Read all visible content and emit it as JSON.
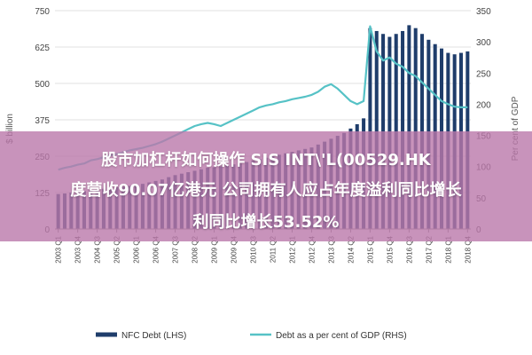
{
  "chart_data": {
    "type": "bar",
    "title": "",
    "xlabel": "",
    "ylabel_left": "$ billion",
    "ylabel_right": "Per cent of GDP",
    "ylim_left": [
      0,
      750
    ],
    "ylim_right": [
      0,
      350
    ],
    "yticks_left": [
      "0",
      "125",
      "250",
      "375",
      "500",
      "625",
      "750"
    ],
    "yticks_right": [
      "0",
      "50",
      "100",
      "150",
      "200",
      "250",
      "300",
      "350"
    ],
    "xtick_labels": [
      "2003 Q1",
      "2003 Q4",
      "2004 Q3",
      "2005 Q2",
      "2006 Q1",
      "2006 Q4",
      "2007 Q3",
      "2008 Q2",
      "2009 Q1",
      "2009 Q4",
      "2010 Q3",
      "2011 Q2",
      "2012 Q1",
      "2012 Q4",
      "2013 Q3",
      "2014 Q2",
      "2015 Q1",
      "2015 Q4",
      "2016 Q3",
      "2017 Q2",
      "2018 Q1",
      "2018 Q4"
    ],
    "quarters": [
      "2003 Q1",
      "2003 Q2",
      "2003 Q3",
      "2003 Q4",
      "2004 Q1",
      "2004 Q2",
      "2004 Q3",
      "2004 Q4",
      "2005 Q1",
      "2005 Q2",
      "2005 Q3",
      "2005 Q4",
      "2006 Q1",
      "2006 Q2",
      "2006 Q3",
      "2006 Q4",
      "2007 Q1",
      "2007 Q2",
      "2007 Q3",
      "2007 Q4",
      "2008 Q1",
      "2008 Q2",
      "2008 Q3",
      "2008 Q4",
      "2009 Q1",
      "2009 Q2",
      "2009 Q3",
      "2009 Q4",
      "2010 Q1",
      "2010 Q2",
      "2010 Q3",
      "2010 Q4",
      "2011 Q1",
      "2011 Q2",
      "2011 Q3",
      "2011 Q4",
      "2012 Q1",
      "2012 Q2",
      "2012 Q3",
      "2012 Q4",
      "2013 Q1",
      "2013 Q2",
      "2013 Q3",
      "2013 Q4",
      "2014 Q1",
      "2014 Q2",
      "2014 Q3",
      "2014 Q4",
      "2015 Q1",
      "2015 Q2",
      "2015 Q3",
      "2015 Q4",
      "2016 Q1",
      "2016 Q2",
      "2016 Q3",
      "2016 Q4",
      "2017 Q1",
      "2017 Q2",
      "2017 Q3",
      "2017 Q4",
      "2018 Q1",
      "2018 Q2",
      "2018 Q3",
      "2018 Q4"
    ],
    "series": [
      {
        "name": "NFC Debt (LHS)",
        "type": "bar",
        "axis": "left",
        "color": "#1f3d6b",
        "values": [
          120,
          122,
          125,
          128,
          130,
          133,
          135,
          138,
          140,
          143,
          145,
          148,
          150,
          155,
          160,
          165,
          170,
          178,
          185,
          190,
          195,
          200,
          205,
          210,
          212,
          215,
          218,
          222,
          225,
          230,
          235,
          240,
          245,
          250,
          255,
          260,
          265,
          270,
          275,
          280,
          290,
          300,
          310,
          320,
          330,
          345,
          360,
          380,
          690,
          680,
          670,
          660,
          670,
          680,
          700,
          690,
          670,
          650,
          635,
          620,
          605,
          600,
          605,
          610
        ]
      },
      {
        "name": "Debt as a per cent of GDP (RHS)",
        "type": "line",
        "axis": "right",
        "color": "#56c2c6",
        "values": [
          95,
          98,
          100,
          103,
          105,
          110,
          112,
          115,
          118,
          120,
          123,
          126,
          128,
          130,
          133,
          136,
          140,
          145,
          150,
          155,
          160,
          165,
          168,
          170,
          168,
          165,
          170,
          175,
          180,
          185,
          190,
          195,
          198,
          200,
          203,
          205,
          208,
          210,
          212,
          215,
          220,
          228,
          232,
          225,
          215,
          205,
          200,
          205,
          325,
          285,
          270,
          275,
          265,
          260,
          250,
          245,
          235,
          225,
          215,
          205,
          200,
          196,
          195,
          195
        ]
      }
    ],
    "legend": {
      "position": "bottom"
    }
  },
  "banner": {
    "line1": "股市加杠杆如何操作 SIS INT\\'L(00529.HK",
    "line2": "度营收90.07亿港元  公司拥有人应占年度溢利同比增长",
    "line3": "利同比增长53.52%"
  }
}
